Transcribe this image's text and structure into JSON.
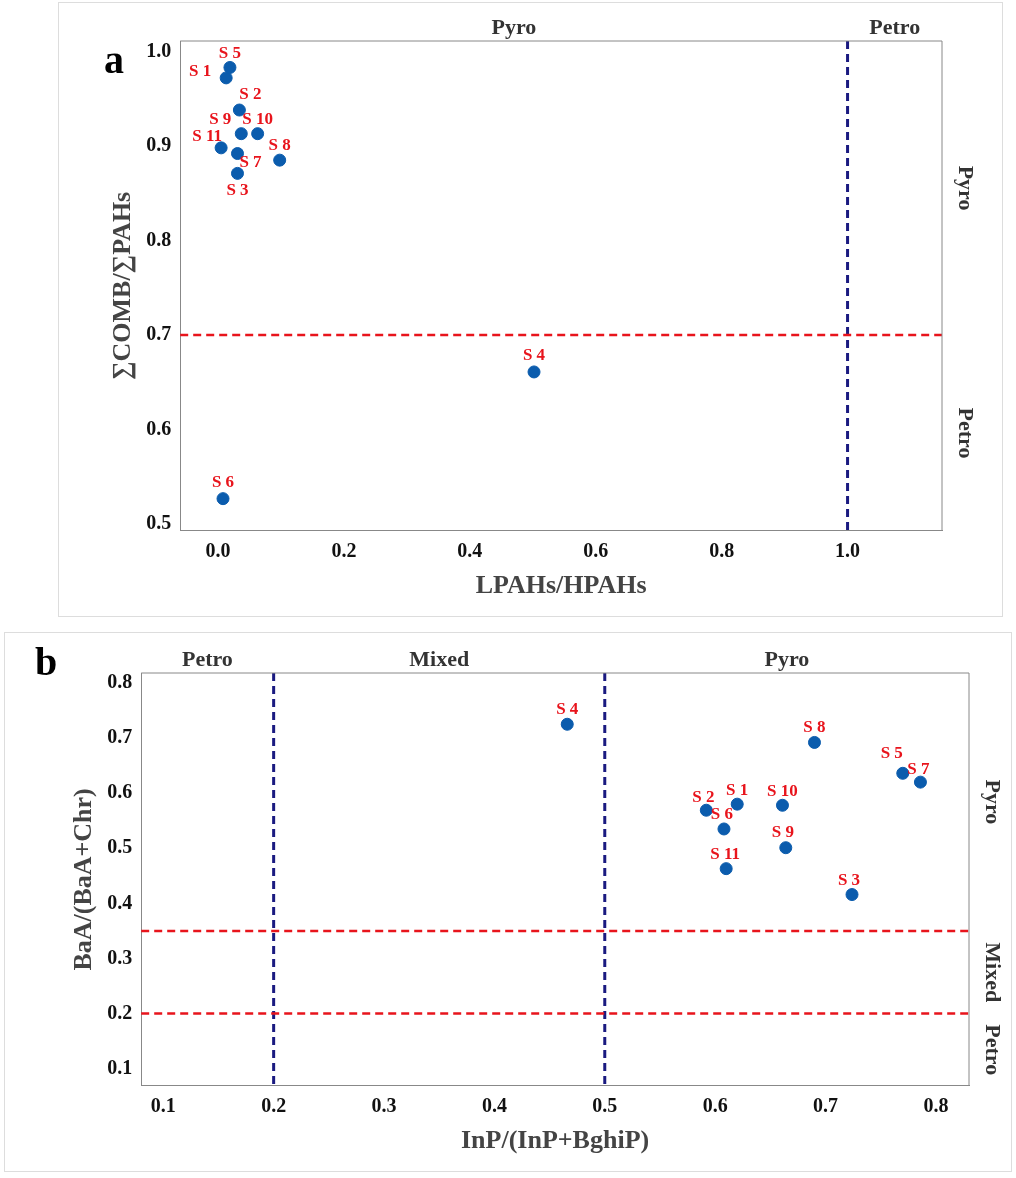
{
  "chart_data": [
    {
      "type": "scatter",
      "xlabel": "LPAHs/HPAHs",
      "ylabel": "∑COMB/∑PAHs",
      "marker": "circle",
      "grid": false,
      "xlim": [
        -0.06,
        1.15
      ],
      "xticks": [
        {
          "value": 0,
          "label": "0.0"
        },
        0.2,
        0.4,
        0.6,
        0.8,
        {
          "value": 1,
          "label": "1.0"
        }
      ],
      "ylim": [
        0.493,
        1.011
      ],
      "yticks": [
        0.5,
        0.6,
        0.7,
        0.8,
        0.9,
        {
          "value": 1,
          "label": "1.0"
        }
      ],
      "series": [
        {
          "color": "#0b5cad",
          "x": [
            0.013,
            0.034,
            0.031,
            0.502,
            0.019,
            0.008,
            0.031,
            0.098,
            0.037,
            0.063,
            0.005
          ],
          "values": [
            0.972,
            0.938,
            0.871,
            0.661,
            0.983,
            0.527,
            0.892,
            0.885,
            0.913,
            0.913,
            0.898
          ]
        }
      ],
      "ref_lines": [
        {
          "axis": "x",
          "value": 1.0,
          "color": "#1a1a80",
          "line_style": "dashed"
        },
        {
          "axis": "y",
          "value": 0.7,
          "color": "#e8141c",
          "line_style": "dashed"
        }
      ],
      "annotations": [
        "a",
        "Pyro",
        "Petro",
        "Pyro",
        "Petro",
        {
          "text": "S 1",
          "x": 0.013,
          "y": 0.972
        },
        {
          "text": "S 2",
          "x": 0.034,
          "y": 0.938
        },
        {
          "text": "S 3",
          "x": 0.031,
          "y": 0.871
        },
        {
          "text": "S 4",
          "x": 0.502,
          "y": 0.661
        },
        {
          "text": "S 5",
          "x": 0.019,
          "y": 0.983
        },
        {
          "text": "S 6",
          "x": 0.008,
          "y": 0.527
        },
        {
          "text": "S 7",
          "x": 0.031,
          "y": 0.892
        },
        {
          "text": "S 8",
          "x": 0.098,
          "y": 0.885
        },
        {
          "text": "S 9",
          "x": 0.037,
          "y": 0.913
        },
        {
          "text": "S 10",
          "x": 0.063,
          "y": 0.913
        },
        {
          "text": "S 11",
          "x": 0.005,
          "y": 0.898
        }
      ]
    },
    {
      "type": "scatter",
      "xlabel": "InP/(InP+BghiP)",
      "ylabel": "BaA/(BaA+Chr)",
      "marker": "circle",
      "grid": false,
      "xlim": [
        0.08,
        0.83
      ],
      "xticks": [
        0.1,
        0.2,
        0.3,
        0.4,
        0.5,
        0.6,
        0.7,
        0.8
      ],
      "ylim": [
        0.069,
        0.818
      ],
      "yticks": [
        0.1,
        0.2,
        0.3,
        0.4,
        0.5,
        0.6,
        0.7,
        0.8
      ],
      "series": [
        {
          "color": "#0b5cad",
          "x": [
            0.62,
            0.592,
            0.724,
            0.466,
            0.77,
            0.608,
            0.786,
            0.69,
            0.664,
            0.661,
            0.61
          ],
          "values": [
            0.58,
            0.569,
            0.416,
            0.725,
            0.636,
            0.535,
            0.62,
            0.692,
            0.501,
            0.578,
            0.463
          ]
        }
      ],
      "ref_lines": [
        {
          "axis": "x",
          "value": 0.2,
          "color": "#1a1a80",
          "line_style": "dashed"
        },
        {
          "axis": "x",
          "value": 0.5,
          "color": "#1a1a80",
          "line_style": "dashed"
        },
        {
          "axis": "y",
          "value": 0.35,
          "color": "#e8141c",
          "line_style": "dashed"
        },
        {
          "axis": "y",
          "value": 0.2,
          "color": "#e8141c",
          "line_style": "dashed"
        }
      ],
      "annotations": [
        "b",
        "Petro",
        "Mixed",
        "Pyro",
        "Pyro",
        "Mixed",
        "Petro",
        {
          "text": "S 1",
          "x": 0.62,
          "y": 0.58
        },
        {
          "text": "S 2",
          "x": 0.592,
          "y": 0.569
        },
        {
          "text": "S 3",
          "x": 0.724,
          "y": 0.416
        },
        {
          "text": "S 4",
          "x": 0.466,
          "y": 0.725
        },
        {
          "text": "S 5",
          "x": 0.77,
          "y": 0.636
        },
        {
          "text": "S 6",
          "x": 0.608,
          "y": 0.535
        },
        {
          "text": "S 7",
          "x": 0.786,
          "y": 0.62
        },
        {
          "text": "S 8",
          "x": 0.69,
          "y": 0.692
        },
        {
          "text": "S 9",
          "x": 0.664,
          "y": 0.501
        },
        {
          "text": "S 10",
          "x": 0.661,
          "y": 0.578
        },
        {
          "text": "S 11",
          "x": 0.61,
          "y": 0.463
        }
      ]
    }
  ]
}
